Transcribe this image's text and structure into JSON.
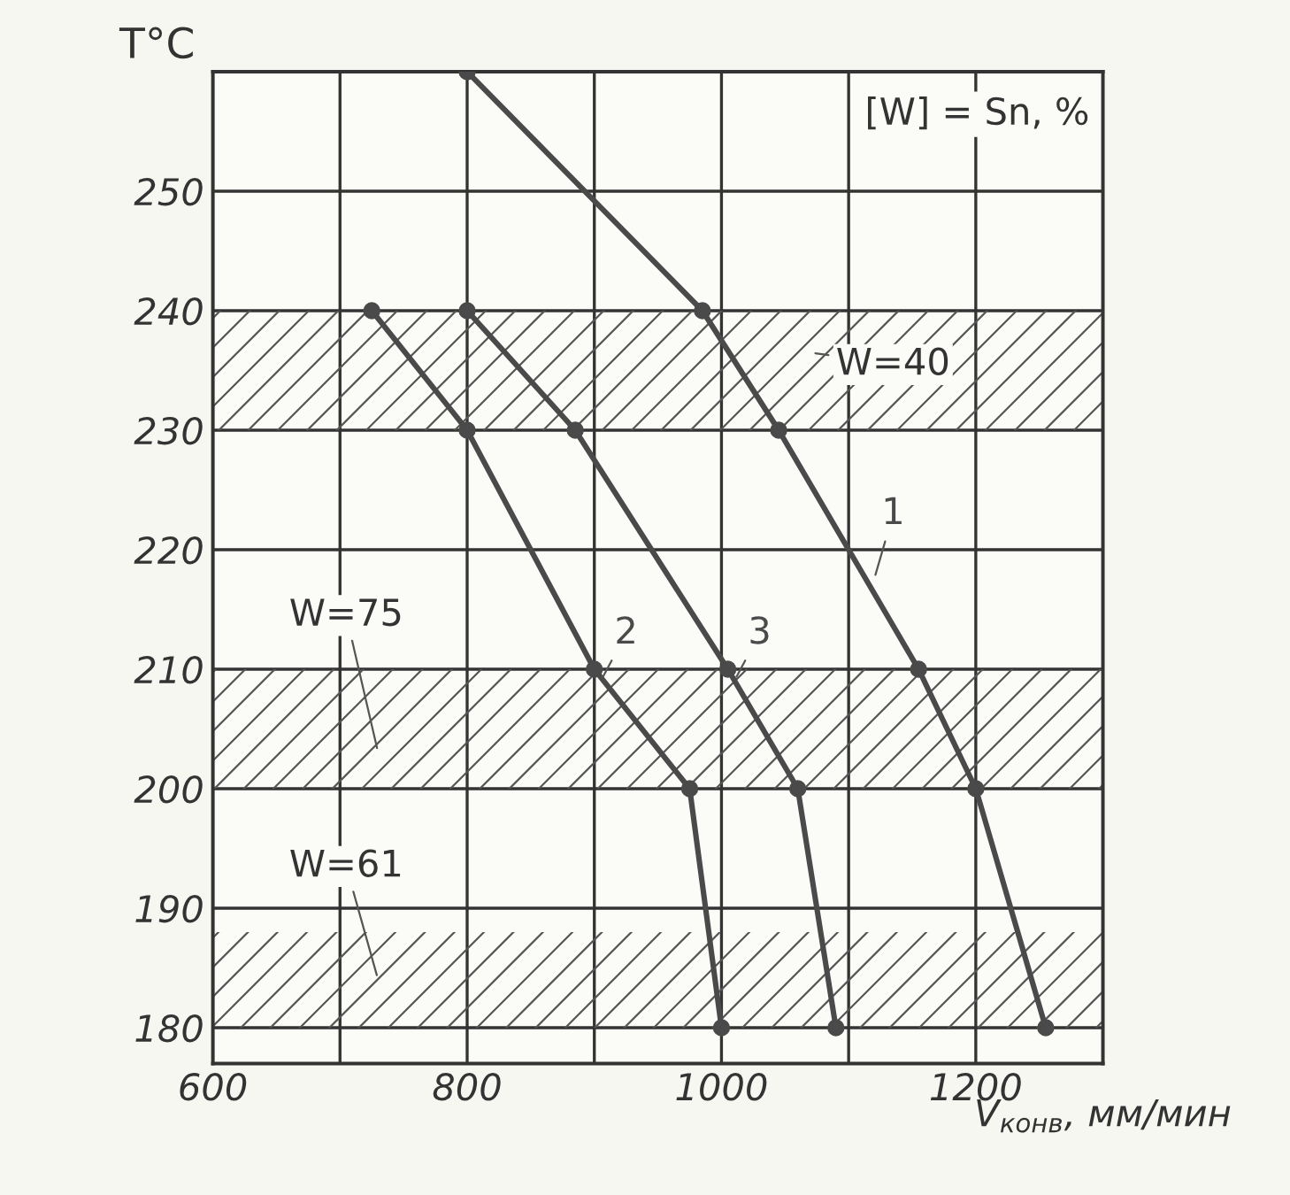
{
  "chart_data": {
    "type": "line",
    "xlabel": "V$_{конв}$, мм/мин",
    "ylabel": "T°C",
    "xlim": [
      600,
      1300
    ],
    "ylim": [
      177,
      260
    ],
    "xticks": [
      600,
      {
        "value": 700,
        "label": null
      },
      800,
      {
        "value": 900,
        "label": null
      },
      1000,
      {
        "value": 1100,
        "label": null
      },
      1200,
      {
        "value": 1300,
        "label": null
      }
    ],
    "yticks": [
      180,
      190,
      200,
      210,
      220,
      230,
      240,
      250,
      {
        "value": 260,
        "label": null
      }
    ],
    "grid": true,
    "marker": "circle",
    "line_style": "solid",
    "series": [
      {
        "name": "1",
        "color": "#4a4a4a",
        "x": [
          800,
          985,
          1045,
          1155,
          1200,
          1255
        ],
        "values": [
          260,
          240,
          230,
          210,
          200,
          180
        ]
      },
      {
        "name": "2",
        "color": "#4a4a4a",
        "x": [
          725,
          800,
          900,
          975,
          1000
        ],
        "values": [
          240,
          230,
          210,
          200,
          180
        ]
      },
      {
        "name": "3",
        "color": "#4a4a4a",
        "x": [
          800,
          885,
          1005,
          1060,
          1090
        ],
        "values": [
          240,
          230,
          210,
          200,
          180
        ]
      }
    ],
    "bands": [
      {
        "axis": "y",
        "from": 230,
        "to": 240,
        "label": "W=40",
        "color": "#555555"
      },
      {
        "axis": "y",
        "from": 200,
        "to": 210,
        "label": "W=75",
        "color": "#555555"
      },
      {
        "axis": "y",
        "from": 180,
        "to": 188,
        "label": "W=61",
        "color": "#555555"
      }
    ],
    "annotations": [
      "[W] = Sn, %"
    ]
  }
}
